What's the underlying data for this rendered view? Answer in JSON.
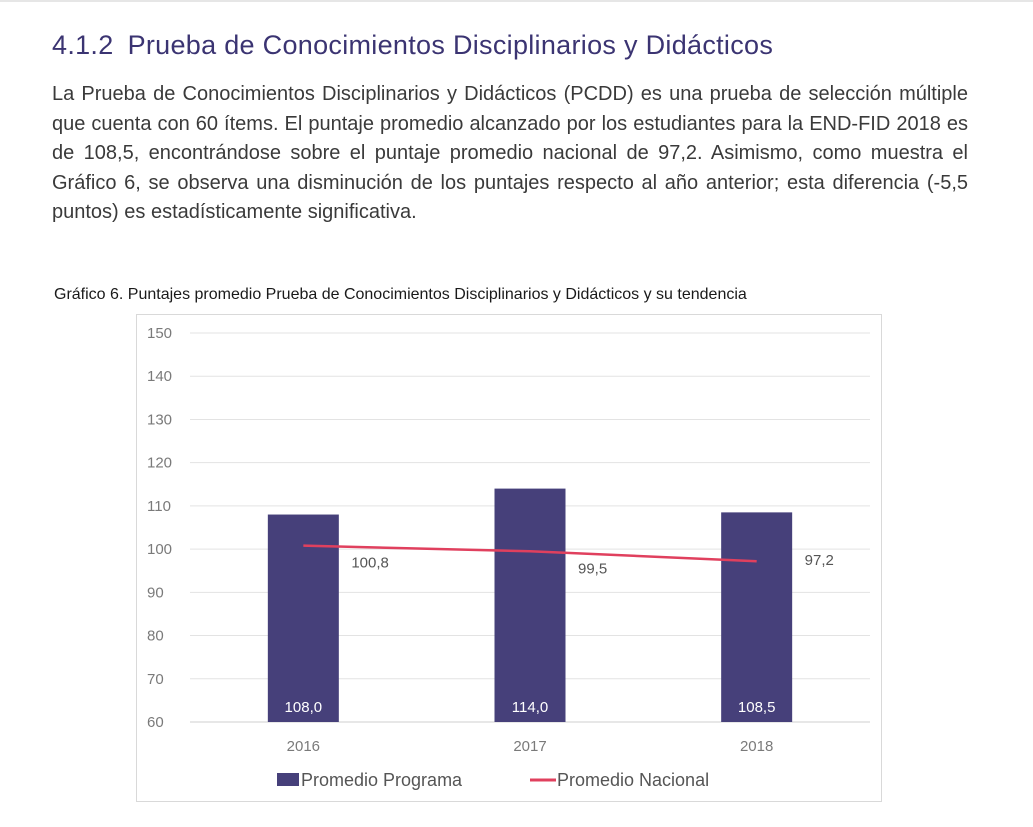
{
  "section": {
    "number": "4.1.2",
    "title": "Prueba de Conocimientos Disciplinarios y Didácticos"
  },
  "paragraph": "La Prueba de Conocimientos Disciplinarios y Didácticos (PCDD) es una prueba de selección múltiple que cuenta con 60 ítems. El puntaje promedio alcanzado por los estudiantes para la END-FID 2018 es de 108,5, encontrándose sobre el puntaje promedio nacional de 97,2. Asimismo, como muestra el Gráfico 6, se observa una disminución de los puntajes respecto al año anterior; esta diferencia (-5,5 puntos) es estadísticamente significativa.",
  "figure_caption": "Gráfico 6. Puntajes promedio Prueba de Conocimientos Disciplinarios y Didácticos y su tendencia",
  "colors": {
    "bar": "#46407a",
    "line": "#e0405e",
    "title": "#3b3472",
    "grid": "#e3e3e3"
  },
  "chart_data": {
    "type": "bar",
    "categories": [
      "2016",
      "2017",
      "2018"
    ],
    "ylim": [
      60,
      150
    ],
    "yticks": [
      60,
      70,
      80,
      90,
      100,
      110,
      120,
      130,
      140,
      150
    ],
    "grid": true,
    "legend_position": "bottom",
    "series": [
      {
        "name": "Promedio Programa",
        "type": "bar",
        "values": [
          108.0,
          114.0,
          108.5
        ],
        "labels": [
          "108,0",
          "114,0",
          "108,5"
        ]
      },
      {
        "name": "Promedio Nacional",
        "type": "line",
        "values": [
          100.8,
          99.5,
          97.2
        ],
        "labels": [
          "100,8",
          "99,5",
          "97,2"
        ]
      }
    ]
  }
}
